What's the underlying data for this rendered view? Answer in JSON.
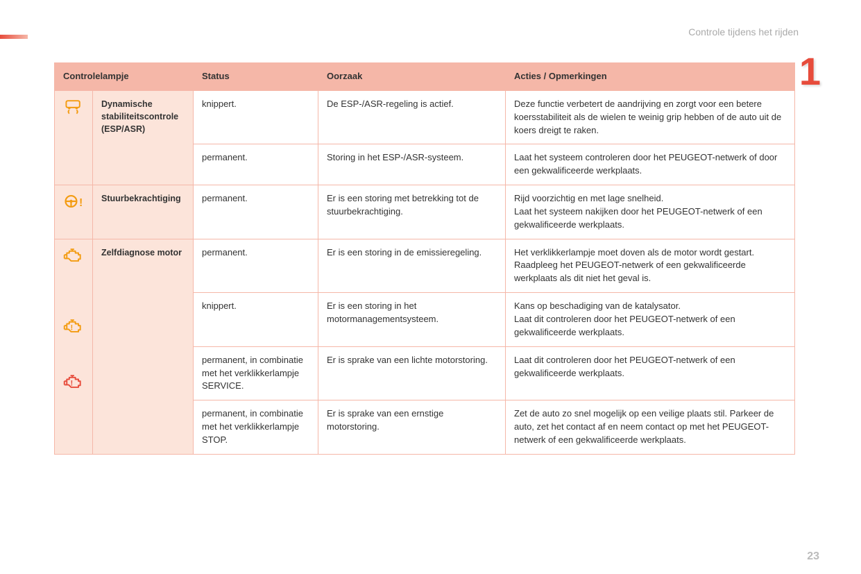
{
  "section_title": "Controle tijdens het rijden",
  "chapter_number": "1",
  "page_number": "23",
  "colors": {
    "header_bg": "#f5b7a8",
    "name_bg": "#fce4da",
    "border": "#f5b7a8",
    "accent": "#e74c3c",
    "icon_amber": "#f39c12",
    "icon_red": "#e74c3c",
    "text": "#333333",
    "muted": "#aaaaaa"
  },
  "table": {
    "headers": {
      "lamp": "Controlelampje",
      "status": "Status",
      "cause": "Oorzaak",
      "action": "Acties / Opmerkingen"
    },
    "groups": [
      {
        "icon": "esp-icon",
        "icon_color": "#f39c12",
        "name": "Dynamische stabiliteitscontrole (ESP/ASR)",
        "rows": [
          {
            "status": "knippert.",
            "cause": "De ESP-/ASR-regeling is actief.",
            "action": "Deze functie verbetert de aandrijving en zorgt voor een betere koersstabiliteit als de wielen te weinig grip hebben of de auto uit de koers dreigt te raken."
          },
          {
            "status": "permanent.",
            "cause": "Storing in het ESP-/ASR-systeem.",
            "action": "Laat het systeem controleren door het PEUGEOT-netwerk of door een gekwalificeerde werkplaats."
          }
        ]
      },
      {
        "icon": "steering-icon",
        "icon_color": "#f39c12",
        "name": "Stuurbekrachtiging",
        "rows": [
          {
            "status": "permanent.",
            "cause": "Er is een storing met betrekking tot de stuurbekrachtiging.",
            "action": "Rijd voorzichtig en met lage snelheid.\nLaat het systeem nakijken door het PEUGEOT-netwerk of een gekwalificeerde werkplaats."
          }
        ]
      },
      {
        "icon": "engine-icon",
        "icon_color": "#f39c12",
        "name": "Zelfdiagnose motor",
        "rows": [
          {
            "extra_icon": null,
            "status": "permanent.",
            "cause": "Er is een storing in de emissieregeling.",
            "action": "Het verklikkerlampje moet doven als de motor wordt gestart.\nRaadpleeg het PEUGEOT-netwerk of een gekwalificeerde werkplaats als dit niet het geval is."
          },
          {
            "extra_icon": null,
            "status": "knippert.",
            "cause": "Er is een storing in het motormanagementsysteem.",
            "action": "Kans op beschadiging van de katalysator.\nLaat dit controleren door het PEUGEOT-netwerk of een gekwalificeerde werkplaats."
          },
          {
            "extra_icon": "engine-warn-icon",
            "extra_icon_color": "#f39c12",
            "status": "permanent, in combinatie met het verklikkerlampje SERVICE.",
            "cause": "Er is sprake van een lichte motorstoring.",
            "action": "Laat dit controleren door het PEUGEOT-netwerk of een gekwalificeerde werkplaats."
          },
          {
            "extra_icon": "engine-warn-icon",
            "extra_icon_color": "#e74c3c",
            "status": "permanent, in combinatie met het verklikkerlampje STOP.",
            "cause": "Er is sprake van een ernstige motorstoring.",
            "action": "Zet de auto zo snel mogelijk op een veilige plaats stil. Parkeer de auto, zet het contact af en neem contact op met het PEUGEOT-netwerk of een gekwalificeerde werkplaats."
          }
        ]
      }
    ]
  }
}
